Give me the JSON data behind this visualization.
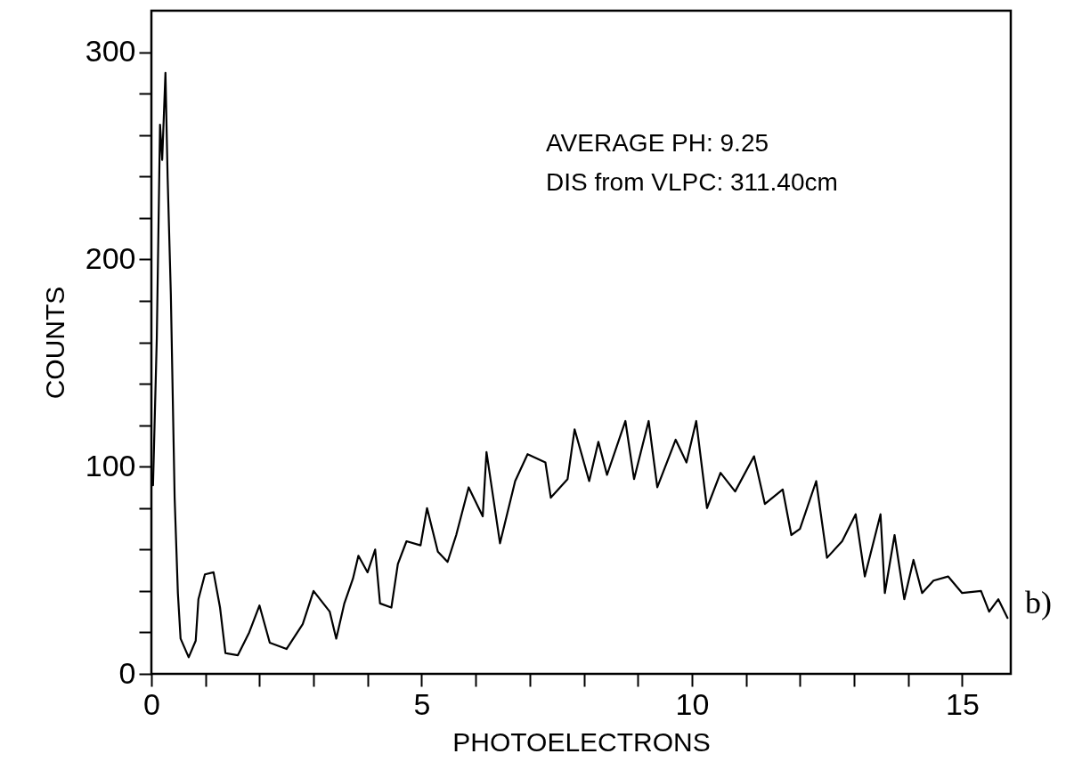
{
  "chart_data": {
    "type": "line",
    "xlabel": "PHOTOELECTRONS",
    "ylabel": "COUNTS",
    "annotations": [
      "AVERAGE PH:  9.25",
      "DIS from VLPC: 311.40cm",
      "b)"
    ],
    "xlim": [
      0,
      15.9
    ],
    "xticks": [
      0,
      {
        "value": 1,
        "label": null
      },
      {
        "value": 2,
        "label": null
      },
      {
        "value": 3,
        "label": null
      },
      {
        "value": 4,
        "label": null
      },
      5,
      {
        "value": 6,
        "label": null
      },
      {
        "value": 7,
        "label": null
      },
      {
        "value": 8,
        "label": null
      },
      {
        "value": 9,
        "label": null
      },
      10,
      {
        "value": 11,
        "label": null
      },
      {
        "value": 12,
        "label": null
      },
      {
        "value": 13,
        "label": null
      },
      {
        "value": 14,
        "label": null
      },
      15
    ],
    "ylim": [
      0,
      320
    ],
    "yticks": [
      0,
      {
        "value": 20,
        "label": null
      },
      {
        "value": 40,
        "label": null
      },
      {
        "value": 60,
        "label": null
      },
      {
        "value": 80,
        "label": null
      },
      100,
      {
        "value": 120,
        "label": null
      },
      {
        "value": 140,
        "label": null
      },
      {
        "value": 160,
        "label": null
      },
      {
        "value": 180,
        "label": null
      },
      200,
      {
        "value": 220,
        "label": null
      },
      {
        "value": 240,
        "label": null
      },
      {
        "value": 260,
        "label": null
      },
      {
        "value": 280,
        "label": null
      },
      300
    ],
    "grid": false,
    "marker": "none",
    "line_style": "solid",
    "series": [
      {
        "color": "#000000",
        "x": [
          0.03,
          0.1,
          0.16,
          0.2,
          0.26,
          0.3,
          0.36,
          0.43,
          0.49,
          0.54,
          0.69,
          0.82,
          0.87,
          0.99,
          1.15,
          1.27,
          1.37,
          1.6,
          1.81,
          2.0,
          2.19,
          2.5,
          2.8,
          3.0,
          3.3,
          3.42,
          3.57,
          3.73,
          3.83,
          4.0,
          4.14,
          4.23,
          4.44,
          4.56,
          4.72,
          4.98,
          5.1,
          5.3,
          5.48,
          5.64,
          5.87,
          6.13,
          6.2,
          6.45,
          6.73,
          6.96,
          7.29,
          7.39,
          7.7,
          7.83,
          8.1,
          8.27,
          8.43,
          8.77,
          8.93,
          9.2,
          9.36,
          9.7,
          9.9,
          10.08,
          10.28,
          10.53,
          10.8,
          11.15,
          11.35,
          11.68,
          11.84,
          12.0,
          12.3,
          12.5,
          12.78,
          13.03,
          13.2,
          13.49,
          13.57,
          13.75,
          13.93,
          14.1,
          14.26,
          14.47,
          14.74,
          15.0,
          15.35,
          15.5,
          15.67,
          15.84
        ],
        "values": [
          91,
          162,
          265,
          248,
          290,
          240,
          183,
          85,
          39,
          17,
          8,
          16,
          36,
          48,
          49,
          32,
          10,
          9,
          20,
          33,
          15,
          12,
          24,
          40,
          30,
          17,
          34,
          46,
          57,
          49,
          60,
          34,
          32,
          53,
          64,
          62,
          80,
          59,
          54,
          67,
          90,
          76,
          107,
          63,
          93,
          106,
          102,
          85,
          94,
          118,
          93,
          112,
          96,
          122,
          94,
          122,
          90,
          113,
          102,
          122,
          80,
          97,
          88,
          105,
          82,
          89,
          67,
          70,
          93,
          56,
          64,
          77,
          47,
          77,
          39,
          67,
          36,
          55,
          39,
          45,
          47,
          39,
          40,
          30,
          36,
          27
        ]
      }
    ]
  }
}
